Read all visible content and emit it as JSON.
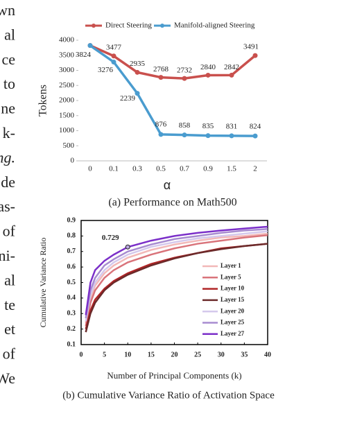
{
  "side_text": [
    "wn",
    "al",
    "ce",
    "to",
    "ne",
    "k-",
    "ng.",
    "de",
    "as-",
    "of",
    "ni-",
    "al",
    "te",
    "et",
    "of",
    "We"
  ],
  "chart_data": [
    {
      "type": "line",
      "caption": "(a) Performance on Math500",
      "xlabel": "α",
      "ylabel": "Tokens",
      "categories": [
        "0",
        "0.1",
        "0.3",
        "0.5",
        "0.7",
        "0.9",
        "1.5",
        "2"
      ],
      "series": [
        {
          "name": "Direct Steering",
          "color": "#c9504d",
          "values": [
            3824,
            3477,
            2935,
            2768,
            2732,
            2840,
            2842,
            3491
          ],
          "value_labels": [
            "3824",
            "3477",
            "2935",
            "2768",
            "2732",
            "2840",
            "2842",
            "3491"
          ]
        },
        {
          "name": "Manifold-aligned Steering",
          "color": "#4a9ccf",
          "values": [
            3824,
            3276,
            2239,
            876,
            858,
            835,
            831,
            824
          ],
          "value_labels": [
            null,
            "3276",
            "2239",
            "876",
            "858",
            "835",
            "831",
            "824"
          ]
        }
      ],
      "ylim": [
        0,
        4000
      ],
      "yticks": [
        0,
        500,
        1000,
        1500,
        2000,
        2500,
        3000,
        3500,
        4000
      ],
      "grid": false,
      "legend": "top"
    },
    {
      "type": "line",
      "caption": "(b) Cumulative Variance Ratio of Activation Space",
      "xlabel": "Number of Principal Components (k)",
      "ylabel": "Cumulative Variance Ratio",
      "x": [
        1,
        2,
        3,
        5,
        7,
        10,
        15,
        20,
        25,
        30,
        35,
        40
      ],
      "series": [
        {
          "name": "Layer 1",
          "color": "#f2b8b8",
          "values": [
            0.24,
            0.4,
            0.48,
            0.56,
            0.61,
            0.66,
            0.71,
            0.745,
            0.77,
            0.79,
            0.8,
            0.815
          ]
        },
        {
          "name": "Layer 5",
          "color": "#d9737a",
          "values": [
            0.22,
            0.37,
            0.45,
            0.53,
            0.58,
            0.63,
            0.68,
            0.72,
            0.75,
            0.77,
            0.79,
            0.805
          ]
        },
        {
          "name": "Layer 10",
          "color": "#b02426",
          "values": [
            0.2,
            0.32,
            0.39,
            0.46,
            0.51,
            0.56,
            0.62,
            0.66,
            0.69,
            0.72,
            0.735,
            0.75
          ]
        },
        {
          "name": "Layer 15",
          "color": "#6b2a2a",
          "values": [
            0.18,
            0.3,
            0.37,
            0.45,
            0.5,
            0.55,
            0.61,
            0.655,
            0.69,
            0.715,
            0.735,
            0.75
          ]
        },
        {
          "name": "Layer 20",
          "color": "#d4c8ec",
          "values": [
            0.25,
            0.42,
            0.5,
            0.58,
            0.63,
            0.68,
            0.73,
            0.76,
            0.785,
            0.8,
            0.815,
            0.83
          ]
        },
        {
          "name": "Layer 25",
          "color": "#a78bd0",
          "values": [
            0.27,
            0.45,
            0.53,
            0.61,
            0.65,
            0.7,
            0.745,
            0.78,
            0.8,
            0.82,
            0.835,
            0.845
          ]
        },
        {
          "name": "Layer 27",
          "color": "#7b2fc9",
          "values": [
            0.29,
            0.5,
            0.58,
            0.64,
            0.68,
            0.729,
            0.77,
            0.8,
            0.82,
            0.835,
            0.848,
            0.86
          ],
          "value_labels": [
            null,
            null,
            null,
            null,
            null,
            "0.729",
            null,
            null,
            null,
            null,
            null,
            null
          ]
        }
      ],
      "xlim": [
        0,
        40
      ],
      "xticks": [
        0,
        5,
        10,
        15,
        20,
        25,
        30,
        35,
        40
      ],
      "ylim": [
        0.1,
        0.9
      ],
      "yticks": [
        0.1,
        0.2,
        0.3,
        0.4,
        0.5,
        0.6,
        0.7,
        0.8,
        0.9
      ],
      "grid": false,
      "legend": "right"
    }
  ]
}
